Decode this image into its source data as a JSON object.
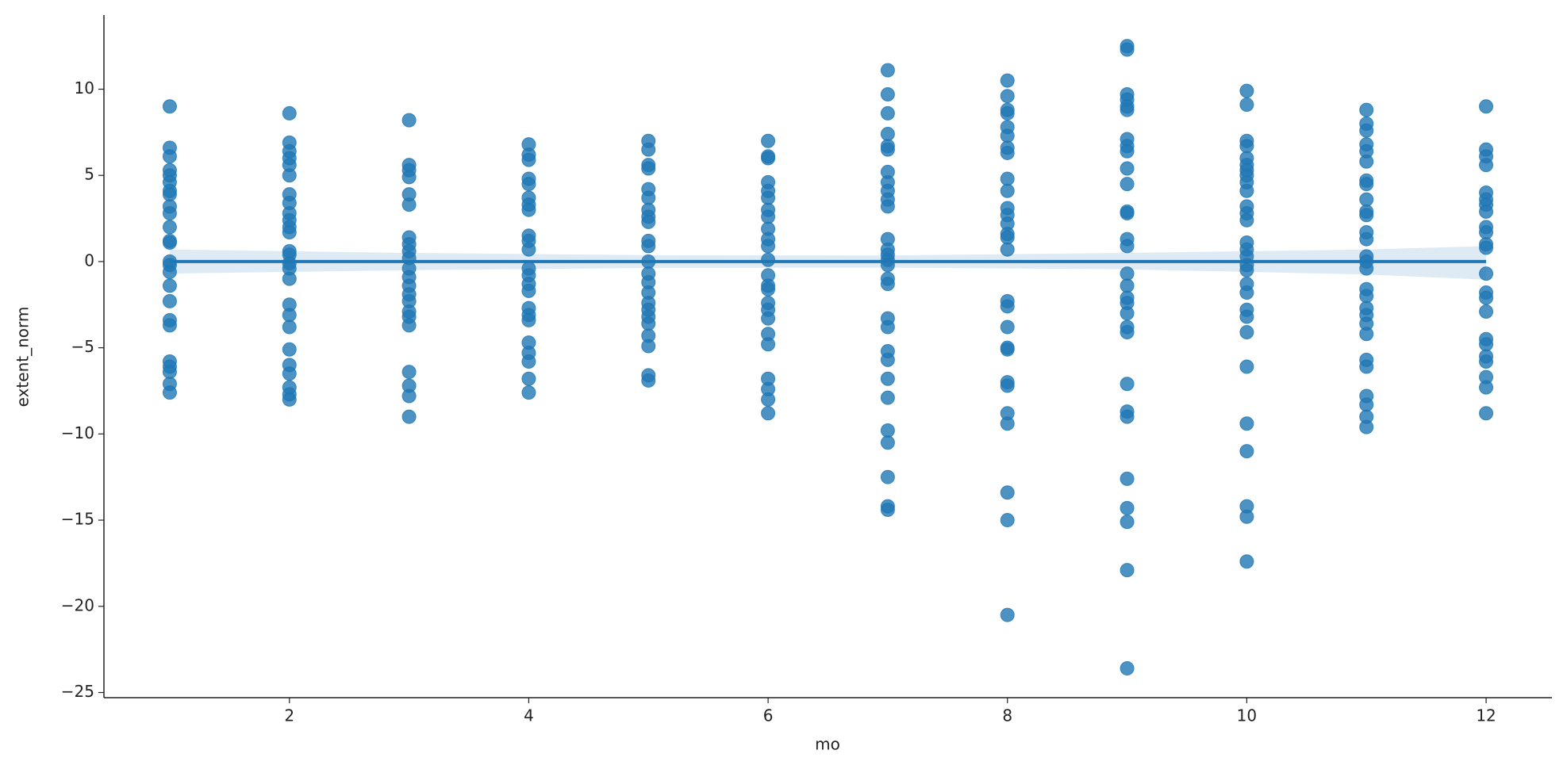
{
  "chart_data": {
    "type": "regplot",
    "xlabel": "mo",
    "ylabel": "extent_norm",
    "color": "#1f77b4",
    "xlim": [
      0.45,
      12.55
    ],
    "ylim": [
      -25.3,
      14.3
    ],
    "xticks": [
      2,
      4,
      6,
      8,
      10,
      12
    ],
    "yticks": [
      {
        "value": -25,
        "label": "−25"
      },
      {
        "value": -20,
        "label": "−20"
      },
      {
        "value": -15,
        "label": "−15"
      },
      {
        "value": -10,
        "label": "−10"
      },
      {
        "value": -5,
        "label": "−5"
      },
      0,
      5,
      10
    ],
    "columns": [
      {
        "x": 1,
        "values": [
          9.0,
          6.6,
          6.1,
          5.3,
          5.0,
          4.6,
          4.1,
          3.9,
          3.2,
          2.8,
          2.0,
          1.2,
          1.1,
          0.0,
          -0.2,
          -0.6,
          -1.4,
          -2.3,
          -3.4,
          -3.7,
          -5.8,
          -6.1,
          -6.4,
          -7.1,
          -7.6
        ]
      },
      {
        "x": 2,
        "values": [
          8.6,
          6.9,
          6.4,
          6.0,
          5.6,
          5.0,
          3.9,
          3.4,
          2.8,
          2.4,
          2.0,
          1.7,
          0.6,
          0.4,
          -0.1,
          -0.4,
          -1.0,
          -2.5,
          -3.1,
          -3.8,
          -5.1,
          -6.0,
          -6.5,
          -7.3,
          -7.7,
          -8.0
        ]
      },
      {
        "x": 3,
        "values": [
          8.2,
          5.6,
          5.3,
          4.9,
          3.9,
          3.3,
          1.4,
          1.0,
          0.6,
          0.2,
          -0.4,
          -0.9,
          -1.4,
          -1.9,
          -2.3,
          -2.9,
          -3.2,
          -3.7,
          -6.4,
          -7.2,
          -7.8,
          -9.0
        ]
      },
      {
        "x": 4,
        "values": [
          6.8,
          6.2,
          5.9,
          4.8,
          4.5,
          3.7,
          3.3,
          3.0,
          1.5,
          1.2,
          0.7,
          -0.4,
          -0.8,
          -1.3,
          -1.7,
          -2.7,
          -3.1,
          -3.4,
          -4.7,
          -5.3,
          -5.8,
          -6.8,
          -7.6
        ]
      },
      {
        "x": 5,
        "values": [
          7.0,
          6.5,
          5.6,
          5.4,
          4.2,
          3.7,
          3.0,
          2.6,
          2.3,
          1.2,
          0.9,
          0.0,
          -0.7,
          -1.2,
          -1.8,
          -2.4,
          -2.8,
          -3.2,
          -3.6,
          -4.3,
          -4.9,
          -6.6,
          -6.9
        ]
      },
      {
        "x": 6,
        "values": [
          7.0,
          6.1,
          6.0,
          4.6,
          4.1,
          3.7,
          3.0,
          2.6,
          1.9,
          1.3,
          0.9,
          0.1,
          -0.8,
          -1.4,
          -1.6,
          -2.4,
          -2.8,
          -3.3,
          -4.2,
          -4.8,
          -6.8,
          -7.4,
          -8.0,
          -8.8
        ]
      },
      {
        "x": 7,
        "values": [
          11.1,
          9.7,
          8.6,
          7.4,
          6.7,
          6.5,
          5.2,
          4.6,
          4.1,
          3.6,
          3.2,
          1.3,
          0.7,
          0.4,
          0.1,
          -0.2,
          -1.0,
          -1.3,
          -3.3,
          -3.8,
          -5.2,
          -5.7,
          -6.8,
          -7.9,
          -9.8,
          -10.5,
          -12.5,
          -14.2,
          -14.4
        ]
      },
      {
        "x": 8,
        "values": [
          10.5,
          9.6,
          8.8,
          8.6,
          7.8,
          7.3,
          6.6,
          6.3,
          4.8,
          4.1,
          3.1,
          2.7,
          2.2,
          1.6,
          1.4,
          0.7,
          -2.3,
          -2.6,
          -3.8,
          -5.0,
          -5.1,
          -7.0,
          -7.2,
          -8.8,
          -9.4,
          -13.4,
          -15.0,
          -20.5
        ]
      },
      {
        "x": 9,
        "values": [
          12.5,
          12.3,
          9.7,
          9.4,
          9.0,
          8.8,
          7.1,
          6.7,
          6.4,
          5.4,
          4.5,
          2.9,
          2.8,
          1.3,
          0.9,
          -0.7,
          -1.4,
          -2.1,
          -2.4,
          -3.0,
          -3.8,
          -4.1,
          -7.1,
          -8.7,
          -9.0,
          -12.6,
          -14.3,
          -15.1,
          -17.9,
          -23.6
        ]
      },
      {
        "x": 10,
        "values": [
          9.9,
          9.1,
          7.0,
          6.7,
          6.0,
          5.6,
          5.3,
          5.0,
          4.6,
          4.1,
          3.2,
          2.8,
          2.4,
          1.1,
          0.7,
          0.3,
          -0.2,
          -0.5,
          -1.3,
          -1.8,
          -2.8,
          -3.2,
          -4.1,
          -6.1,
          -9.4,
          -11.0,
          -14.2,
          -14.8,
          -17.4
        ]
      },
      {
        "x": 11,
        "values": [
          8.8,
          8.0,
          7.6,
          6.8,
          6.4,
          5.8,
          4.7,
          4.5,
          3.6,
          2.9,
          2.7,
          1.7,
          1.3,
          0.3,
          0.0,
          -0.4,
          -1.6,
          -2.0,
          -2.7,
          -3.1,
          -3.6,
          -4.2,
          -5.7,
          -6.1,
          -7.8,
          -8.3,
          -9.0,
          -9.6
        ]
      },
      {
        "x": 12,
        "values": [
          9.0,
          6.5,
          6.1,
          5.6,
          4.0,
          3.6,
          3.3,
          2.9,
          2.0,
          1.7,
          1.0,
          0.8,
          -0.7,
          -1.8,
          -2.1,
          -2.9,
          -4.5,
          -4.8,
          -5.5,
          -5.8,
          -6.7,
          -7.3,
          -8.8
        ]
      }
    ],
    "fit": {
      "x": [
        1,
        12
      ],
      "values": [
        0,
        0
      ]
    },
    "ci": {
      "x": [
        1,
        3,
        5,
        7,
        9,
        11,
        12
      ],
      "lower": [
        -0.7,
        -0.5,
        -0.37,
        -0.35,
        -0.45,
        -0.75,
        -1.05
      ],
      "upper": [
        0.7,
        0.5,
        0.37,
        0.35,
        0.5,
        0.7,
        0.9
      ]
    }
  }
}
